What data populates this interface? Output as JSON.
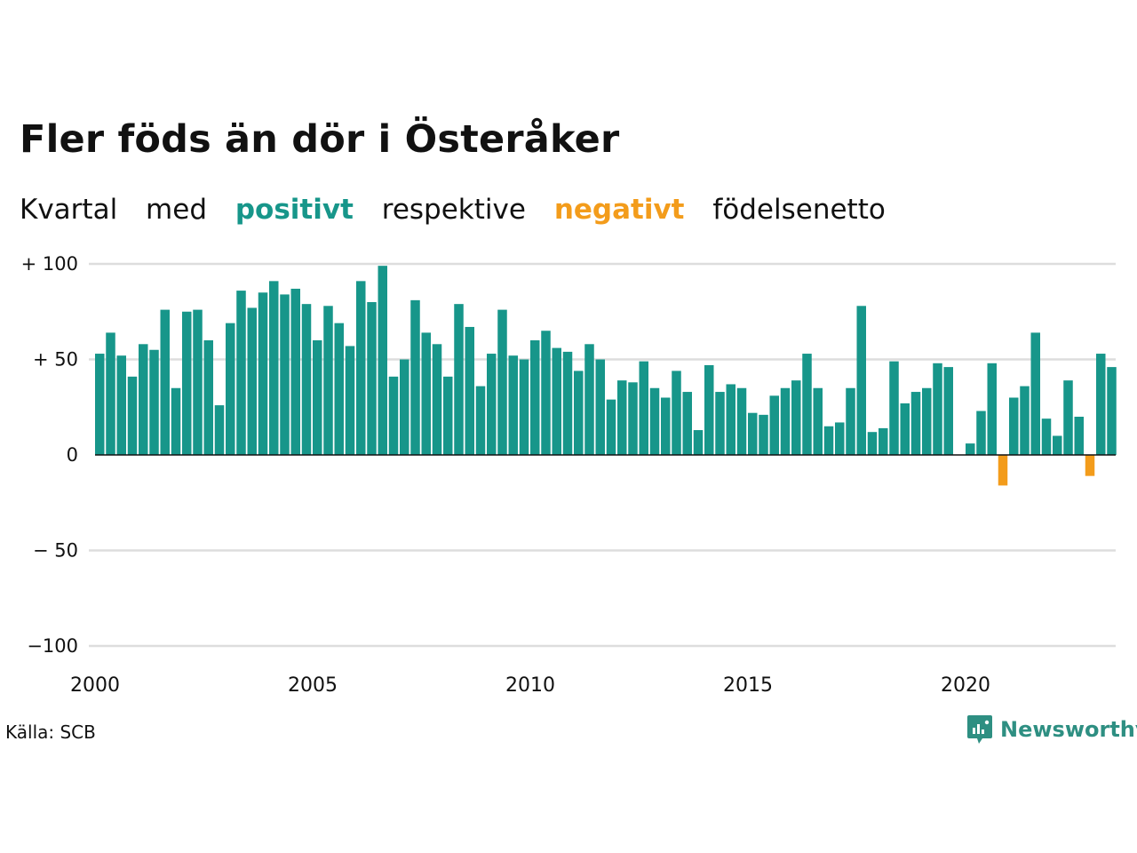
{
  "title": "Fler föds än dör i Österåker",
  "subtitle": {
    "w1": "Kvartal",
    "w2": "med",
    "positive": "positivt",
    "w3": "respektive",
    "negative": "negativt",
    "w4": "födelsenetto"
  },
  "colors": {
    "positive": "#17968a",
    "negative": "#f39c1b",
    "grid": "#dddddd",
    "baseline": "#111111"
  },
  "source": "Källa: SCB",
  "brand": {
    "name": "Newsworthy",
    "icon": "newsworthy-logo-icon"
  },
  "chart_data": {
    "type": "bar",
    "title": "Fler föds än dör i Österåker",
    "ylim": [
      -100,
      100
    ],
    "yticks": [
      {
        "value": 100,
        "label": "+ 100"
      },
      {
        "value": 50,
        "label": "+  50"
      },
      {
        "value": 0,
        "label": "0"
      },
      {
        "value": -50,
        "label": "− 50"
      },
      {
        "value": -100,
        "label": "−100"
      }
    ],
    "xticks": [
      "2000",
      "2005",
      "2010",
      "2015",
      "2020"
    ],
    "x_start": "2000 Q1",
    "grid": true,
    "values": [
      53,
      64,
      52,
      41,
      58,
      55,
      76,
      35,
      75,
      76,
      60,
      26,
      69,
      86,
      77,
      85,
      91,
      84,
      87,
      79,
      60,
      78,
      69,
      57,
      91,
      80,
      99,
      41,
      50,
      81,
      64,
      58,
      41,
      79,
      67,
      36,
      53,
      76,
      52,
      50,
      60,
      65,
      56,
      54,
      44,
      58,
      50,
      29,
      39,
      38,
      49,
      35,
      30,
      44,
      33,
      13,
      47,
      33,
      37,
      35,
      22,
      21,
      31,
      35,
      39,
      53,
      35,
      15,
      17,
      35,
      78,
      12,
      14,
      49,
      27,
      33,
      35,
      48,
      46,
      0,
      6,
      23,
      48,
      -16,
      30,
      36,
      64,
      19,
      10,
      39,
      20,
      -11,
      53,
      46
    ]
  }
}
